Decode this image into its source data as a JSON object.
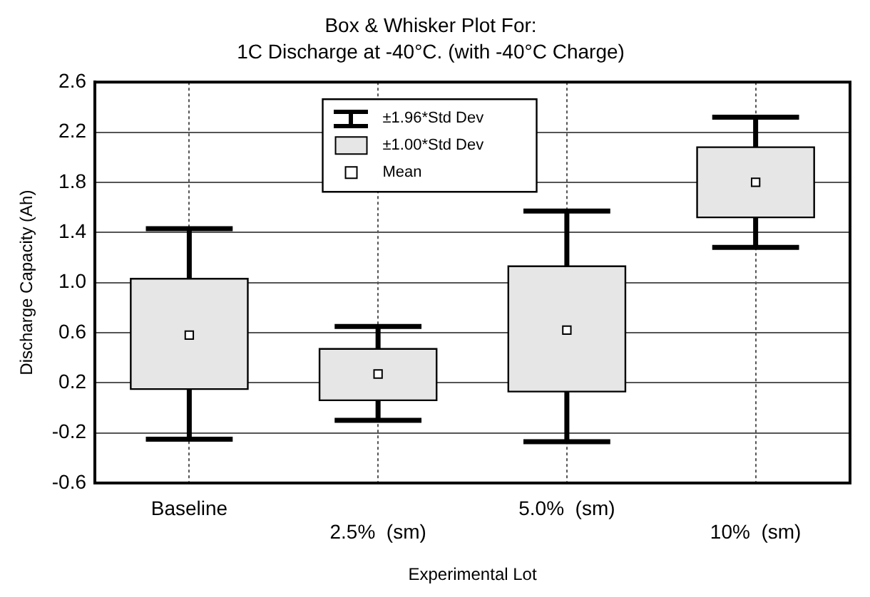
{
  "chart_data": {
    "type": "box",
    "title": "Box & Whisker Plot For:",
    "subtitle": "1C Discharge at -40°C. (with -40°C Charge)",
    "xlabel": "Experimental Lot",
    "ylabel": "Discharge Capacity (Ah)",
    "categories": [
      "Baseline",
      "2.5%  (sm)",
      "5.0%  (sm)",
      "10%  (sm)"
    ],
    "series": [
      {
        "type": "box",
        "name": "±1.00*Std Dev",
        "color": "#e6e6e6",
        "boxes": [
          {
            "low": -0.25,
            "q1": 0.15,
            "q3": 1.03,
            "high": 1.43
          },
          {
            "low": -0.1,
            "q1": 0.06,
            "q3": 0.47,
            "high": 0.65
          },
          {
            "low": -0.27,
            "q1": 0.13,
            "q3": 1.13,
            "high": 1.57
          },
          {
            "low": 1.28,
            "q1": 1.52,
            "q3": 2.08,
            "high": 2.32
          }
        ]
      },
      {
        "type": "scatter",
        "name": "Mean",
        "color": "#ffffff",
        "marker": "square",
        "values": [
          0.58,
          0.27,
          0.62,
          1.8
        ]
      }
    ],
    "annotations": [
      "±1.96*Std Dev"
    ],
    "ylim": [
      -0.6,
      2.6
    ],
    "yticks": [
      -0.6,
      -0.2,
      0.2,
      {
        "value": 0.6,
        "label": "0.6"
      },
      {
        "value": 1,
        "label": "1.0"
      },
      1.4,
      1.8,
      2.2,
      2.6
    ],
    "grid": true,
    "legend": "top"
  }
}
